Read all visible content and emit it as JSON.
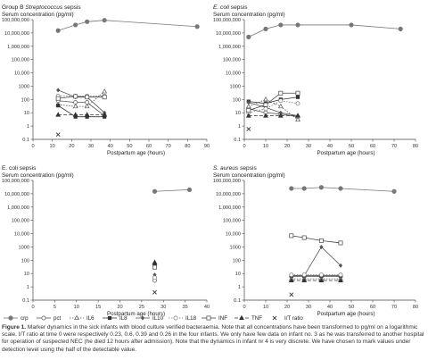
{
  "caption": {
    "label": "Figure 1.",
    "text": "Marker dynamics in the sick infants with blood culture verified bacteraemia. Note that all concentrations have been transformed to pg/ml on a logarithmic scale. I/T ratio at time 0 were respectively 0.23, 0.6, 0.39 and 0.26 in the four infants. We only have few data on infant no. 3 as he was transferred to another hospital for operation of suspected NEC (he died 12 hours after admission). Note that the dynamics in infant nr 4 is very discrete. We have chosen to mark values under detection level using the half of the detectable value."
  },
  "legend": [
    {
      "name": "crp",
      "marker": "circle-filled",
      "dash": "solid"
    },
    {
      "name": "pct",
      "marker": "circle-open",
      "dash": "solid"
    },
    {
      "name": "IL6",
      "marker": "triangle-open",
      "dash": "dotted"
    },
    {
      "name": "IL8",
      "marker": "square-filled",
      "dash": "solid"
    },
    {
      "name": "IL10",
      "marker": "diamond-filled",
      "dash": "solid"
    },
    {
      "name": "IL18",
      "marker": "circle-open",
      "dash": "dotted"
    },
    {
      "name": "INF",
      "marker": "square-open",
      "dash": "solid"
    },
    {
      "name": "TNF",
      "marker": "triangle-filled",
      "dash": "dashed"
    },
    {
      "name": "I/T ratio",
      "marker": "x",
      "dash": "none"
    }
  ],
  "chart_data": [
    {
      "type": "line",
      "log_y": true,
      "title_pre": "Group B ",
      "title_em": "Streptococcus",
      "title_post": " sepsis",
      "ylabel": "Serum concentration (pg/ml)",
      "xlabel": "Postpartum age (hours)",
      "xlim": [
        0,
        90
      ],
      "xticks": [
        0,
        10,
        20,
        30,
        40,
        50,
        60,
        70,
        80,
        90
      ],
      "ylim": [
        0.1,
        100000000
      ],
      "yticks": [
        "0.1",
        "1",
        "10",
        "100",
        "1000",
        "10,000",
        "100,000",
        "1,000,000",
        "10,000,000",
        "100,000,000"
      ],
      "series": [
        {
          "name": "crp",
          "x": [
            13,
            22,
            28,
            37,
            85
          ],
          "y": [
            15000000,
            40000000,
            70000000,
            90000000,
            30000000
          ]
        },
        {
          "name": "pct",
          "x": [
            13,
            22,
            28,
            37
          ],
          "y": [
            80,
            60,
            60,
            6
          ]
        },
        {
          "name": "IL6",
          "x": [
            13,
            22,
            28,
            37
          ],
          "y": [
            40,
            30,
            30,
            400
          ]
        },
        {
          "name": "IL8",
          "x": [
            13,
            22,
            28,
            37
          ],
          "y": [
            35,
            5,
            5,
            5
          ]
        },
        {
          "name": "IL10",
          "x": [
            13,
            22,
            28,
            37
          ],
          "y": [
            500,
            150,
            150,
            10
          ]
        },
        {
          "name": "IL18",
          "x": [
            13,
            22,
            28,
            37
          ],
          "y": [
            180,
            180,
            180,
            180
          ]
        },
        {
          "name": "INF",
          "x": [
            13,
            22,
            28,
            37
          ],
          "y": [
            120,
            170,
            150,
            150
          ]
        },
        {
          "name": "TNF",
          "x": [
            13,
            22,
            28,
            37
          ],
          "y": [
            7,
            7,
            7,
            7
          ]
        },
        {
          "name": "I/T ratio",
          "x": [
            13
          ],
          "y": [
            0.23
          ]
        }
      ]
    },
    {
      "type": "line",
      "log_y": true,
      "title_pre": "",
      "title_em": "E. coli",
      "title_post": " sepsis",
      "ylabel": "Serum concentration (pg/ml)",
      "xlabel": "Postpartum age (hours)",
      "xlim": [
        0,
        80
      ],
      "xticks": [
        0,
        10,
        20,
        30,
        40,
        50,
        60,
        70,
        80
      ],
      "ylim": [
        0.1,
        100000000
      ],
      "yticks": [
        "0.1",
        "1",
        "10",
        "100",
        "1000",
        "10,000",
        "100,000",
        "1,000,000",
        "10,000,000",
        "100,000,000"
      ],
      "series": [
        {
          "name": "crp",
          "x": [
            2,
            10,
            17,
            25,
            50,
            73
          ],
          "y": [
            5000000,
            20000000,
            40000000,
            40000000,
            40000000,
            20000000
          ]
        },
        {
          "name": "pct",
          "x": [
            2,
            10,
            17,
            25
          ],
          "y": [
            20,
            10,
            8,
            5
          ]
        },
        {
          "name": "IL6",
          "x": [
            2,
            10,
            17,
            25
          ],
          "y": [
            30,
            100,
            30,
            3
          ]
        },
        {
          "name": "IL8",
          "x": [
            2,
            10,
            17,
            25
          ],
          "y": [
            70,
            50,
            100,
            150
          ]
        },
        {
          "name": "IL10",
          "x": [
            2,
            10,
            17,
            25
          ],
          "y": [
            60,
            25,
            10,
            6
          ]
        },
        {
          "name": "IL18",
          "x": [
            2,
            10,
            17,
            25
          ],
          "y": [
            10,
            20,
            80,
            50
          ]
        },
        {
          "name": "INF",
          "x": [
            2,
            10,
            17,
            25
          ],
          "y": [
            15,
            40,
            300,
            300
          ]
        },
        {
          "name": "TNF",
          "x": [
            2,
            10,
            17,
            25
          ],
          "y": [
            6,
            6,
            6,
            6
          ]
        },
        {
          "name": "I/T ratio",
          "x": [
            2
          ],
          "y": [
            0.6
          ]
        }
      ]
    },
    {
      "type": "line",
      "log_y": true,
      "title_pre": "",
      "title_em": "",
      "title_post": "E. coli sepsis",
      "ylabel": "Serum concentration (pg/ml)",
      "xlabel": "Postpartum age (hours)",
      "xlim": [
        0,
        40
      ],
      "xticks": [
        0,
        5,
        10,
        15,
        20,
        25,
        30,
        35,
        40
      ],
      "ylim": [
        0.1,
        100000000
      ],
      "yticks": [
        "0.1",
        "1",
        "10",
        "100",
        "1000",
        "10,000",
        "100,000",
        "1,000,000",
        "10,000,000",
        "100,000,000"
      ],
      "series": [
        {
          "name": "crp",
          "x": [
            28,
            36
          ],
          "y": [
            15000000,
            20000000
          ]
        },
        {
          "name": "pct",
          "x": [
            28
          ],
          "y": [
            3
          ]
        },
        {
          "name": "IL6",
          "x": [
            28
          ],
          "y": [
            60
          ]
        },
        {
          "name": "IL8",
          "x": [
            28
          ],
          "y": [
            40
          ]
        },
        {
          "name": "IL10",
          "x": [
            28
          ],
          "y": [
            8
          ]
        },
        {
          "name": "IL18",
          "x": [
            28
          ],
          "y": [
            5
          ]
        },
        {
          "name": "INF",
          "x": [
            28
          ],
          "y": [
            30
          ]
        },
        {
          "name": "TNF",
          "x": [
            28
          ],
          "y": [
            70
          ]
        },
        {
          "name": "I/T ratio",
          "x": [
            28
          ],
          "y": [
            0.39
          ]
        }
      ]
    },
    {
      "type": "line",
      "log_y": true,
      "title_pre": "",
      "title_em": "S. aureus",
      "title_post": " sepsis",
      "ylabel": "Serum concentration (pg/ml)",
      "xlabel": "Postpartum age (hours)",
      "xlim": [
        0,
        80
      ],
      "xticks": [
        0,
        10,
        20,
        30,
        40,
        50,
        60,
        70,
        80
      ],
      "ylim": [
        0.1,
        100000000
      ],
      "yticks": [
        "0.1",
        "1",
        "10",
        "100",
        "1000",
        "10,000",
        "100,000",
        "1,000,000",
        "10,000,000",
        "100,000,000"
      ],
      "series": [
        {
          "name": "crp",
          "x": [
            22,
            28,
            36,
            45,
            70
          ],
          "y": [
            25000000,
            25000000,
            30000000,
            25000000,
            15000000
          ]
        },
        {
          "name": "pct",
          "x": [
            22,
            28,
            36,
            45
          ],
          "y": [
            6,
            6,
            6,
            6
          ]
        },
        {
          "name": "IL6",
          "x": [
            22,
            28,
            36,
            45
          ],
          "y": [
            4,
            4,
            4,
            4
          ]
        },
        {
          "name": "IL8",
          "x": [
            22,
            28,
            36,
            45
          ],
          "y": [
            7,
            7,
            7,
            7
          ]
        },
        {
          "name": "IL10",
          "x": [
            22,
            28,
            36,
            45
          ],
          "y": [
            7,
            7,
            1000,
            40
          ]
        },
        {
          "name": "IL18",
          "x": [
            22,
            28,
            36,
            45
          ],
          "y": [
            8,
            8,
            8,
            8
          ]
        },
        {
          "name": "INF",
          "x": [
            22,
            28,
            36,
            45
          ],
          "y": [
            7000,
            5000,
            3000,
            2000
          ]
        },
        {
          "name": "TNF",
          "x": [
            22,
            28,
            36,
            45
          ],
          "y": [
            3,
            3,
            3,
            3
          ]
        },
        {
          "name": "I/T ratio",
          "x": [
            22
          ],
          "y": [
            0.26
          ]
        }
      ]
    }
  ]
}
